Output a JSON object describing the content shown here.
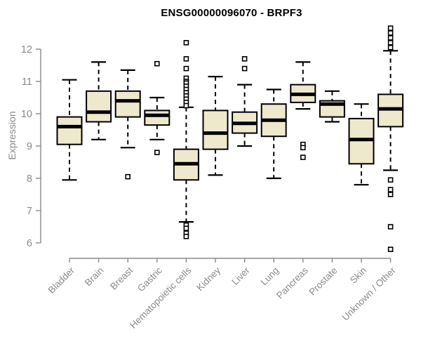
{
  "page": {
    "background": "#ffffff"
  },
  "chart_data": {
    "type": "boxplot",
    "title": "ENSG00000096070 - BRPF3",
    "ylabel": "Expression",
    "xlabel": "",
    "ylim": [
      6,
      12
    ],
    "yticks": [
      6,
      7,
      8,
      9,
      10,
      11,
      12
    ],
    "grid": false,
    "legend": "none",
    "categories": [
      "Bladder",
      "Brain",
      "Breast",
      "Gastric",
      "Hematopoietic cells",
      "Kidney",
      "Liver",
      "Lung",
      "Pancreas",
      "Prostate",
      "Skin",
      "Unknown / Other"
    ],
    "series": [
      {
        "name": "Bladder",
        "low": 7.95,
        "q1": 9.05,
        "median": 9.6,
        "q3": 9.9,
        "high": 11.05,
        "outliers": []
      },
      {
        "name": "Brain",
        "low": 9.2,
        "q1": 9.75,
        "median": 10.05,
        "q3": 10.7,
        "high": 11.6,
        "outliers": []
      },
      {
        "name": "Breast",
        "low": 8.95,
        "q1": 9.9,
        "median": 10.4,
        "q3": 10.7,
        "high": 11.35,
        "outliers": [
          8.05
        ]
      },
      {
        "name": "Gastric",
        "low": 9.2,
        "q1": 9.65,
        "median": 9.95,
        "q3": 10.1,
        "high": 10.5,
        "outliers": [
          11.55,
          8.8
        ]
      },
      {
        "name": "Hematopoietic cells",
        "low": 6.65,
        "q1": 7.95,
        "median": 8.45,
        "q3": 8.9,
        "high": 10.2,
        "outliers": [
          12.2,
          11.7,
          11.4,
          11.1,
          11.0,
          10.95,
          10.85,
          10.75,
          10.65,
          10.55,
          10.45,
          10.35,
          10.25,
          6.55,
          6.45,
          6.3,
          6.2
        ]
      },
      {
        "name": "Kidney",
        "low": 8.1,
        "q1": 8.9,
        "median": 9.4,
        "q3": 10.1,
        "high": 11.15,
        "outliers": []
      },
      {
        "name": "Liver",
        "low": 9.0,
        "q1": 9.4,
        "median": 9.7,
        "q3": 10.05,
        "high": 10.9,
        "outliers": [
          11.7,
          11.4
        ]
      },
      {
        "name": "Lung",
        "low": 8.0,
        "q1": 9.3,
        "median": 9.8,
        "q3": 10.3,
        "high": 10.75,
        "outliers": []
      },
      {
        "name": "Pancreas",
        "low": 10.15,
        "q1": 10.35,
        "median": 10.6,
        "q3": 10.9,
        "high": 11.6,
        "outliers": [
          9.05,
          8.95,
          8.65
        ]
      },
      {
        "name": "Prostate",
        "low": 9.75,
        "q1": 9.9,
        "median": 10.3,
        "q3": 10.4,
        "high": 10.7,
        "outliers": []
      },
      {
        "name": "Skin",
        "low": 7.8,
        "q1": 8.45,
        "median": 9.2,
        "q3": 9.85,
        "high": 10.3,
        "outliers": []
      },
      {
        "name": "Unknown / Other",
        "low": 8.25,
        "q1": 9.6,
        "median": 10.15,
        "q3": 10.6,
        "high": 11.95,
        "outliers": [
          12.65,
          12.5,
          12.35,
          12.2,
          12.05,
          7.95,
          7.65,
          7.5,
          6.5,
          5.8
        ]
      }
    ],
    "colors": {
      "box_fill": "#EEE8CD",
      "box_stroke": "#000000",
      "median": "#000000",
      "axis": "#8a8a8a",
      "tick_label": "#8a8a8a",
      "title": "#000000",
      "background": "#ffffff"
    }
  }
}
